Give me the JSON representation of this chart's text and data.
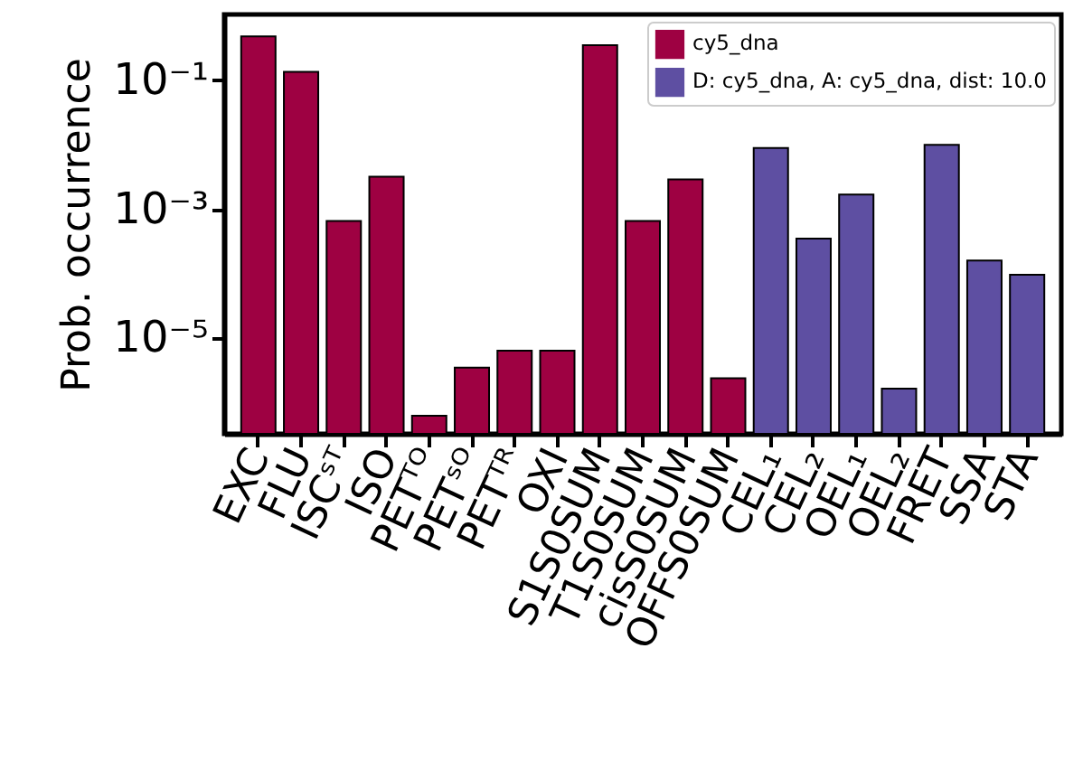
{
  "chart_data": {
    "type": "bar",
    "ylabel": "Prob. occurrence",
    "categories": [
      "EXC",
      "FLU",
      "ISCˢᵀ",
      "ISO",
      "PETᵀᴼ",
      "PETˢᴼ",
      "PETᵀᴿ",
      "OXI",
      "S1S0SUM",
      "T1S0SUM",
      "cisS0SUM",
      "OFFS0SUM",
      "CEL₁",
      "CEL₂",
      "OEL₁",
      "OEL₂",
      "FRET",
      "SSA",
      "STA"
    ],
    "series": [
      {
        "name": "cy5_dna",
        "color": "#9e0142",
        "values": [
          0.48,
          0.135,
          0.00066,
          0.0032,
          6.3e-07,
          3.5e-06,
          6.4e-06,
          6.4e-06,
          0.35,
          0.00066,
          0.0029,
          2.4e-06,
          null,
          null,
          null,
          null,
          null,
          null,
          null
        ]
      },
      {
        "name": "D: cy5_dna, A: cy5_dna, dist: 10.0",
        "color": "#5e4fa2",
        "values": [
          null,
          null,
          null,
          null,
          null,
          null,
          null,
          null,
          null,
          null,
          null,
          null,
          0.0089,
          0.00035,
          0.0017,
          1.65e-06,
          0.01,
          0.00016,
          9.7e-05
        ]
      }
    ],
    "log": true,
    "ylim": [
      3.3e-07,
      1.05
    ],
    "yticks": [
      {
        "value": 0.1,
        "label": "10⁻¹"
      },
      {
        "value": 0.001,
        "label": "10⁻³"
      },
      {
        "value": 1e-05,
        "label": "10⁻⁵"
      }
    ],
    "legend": "top right",
    "grid": false
  }
}
